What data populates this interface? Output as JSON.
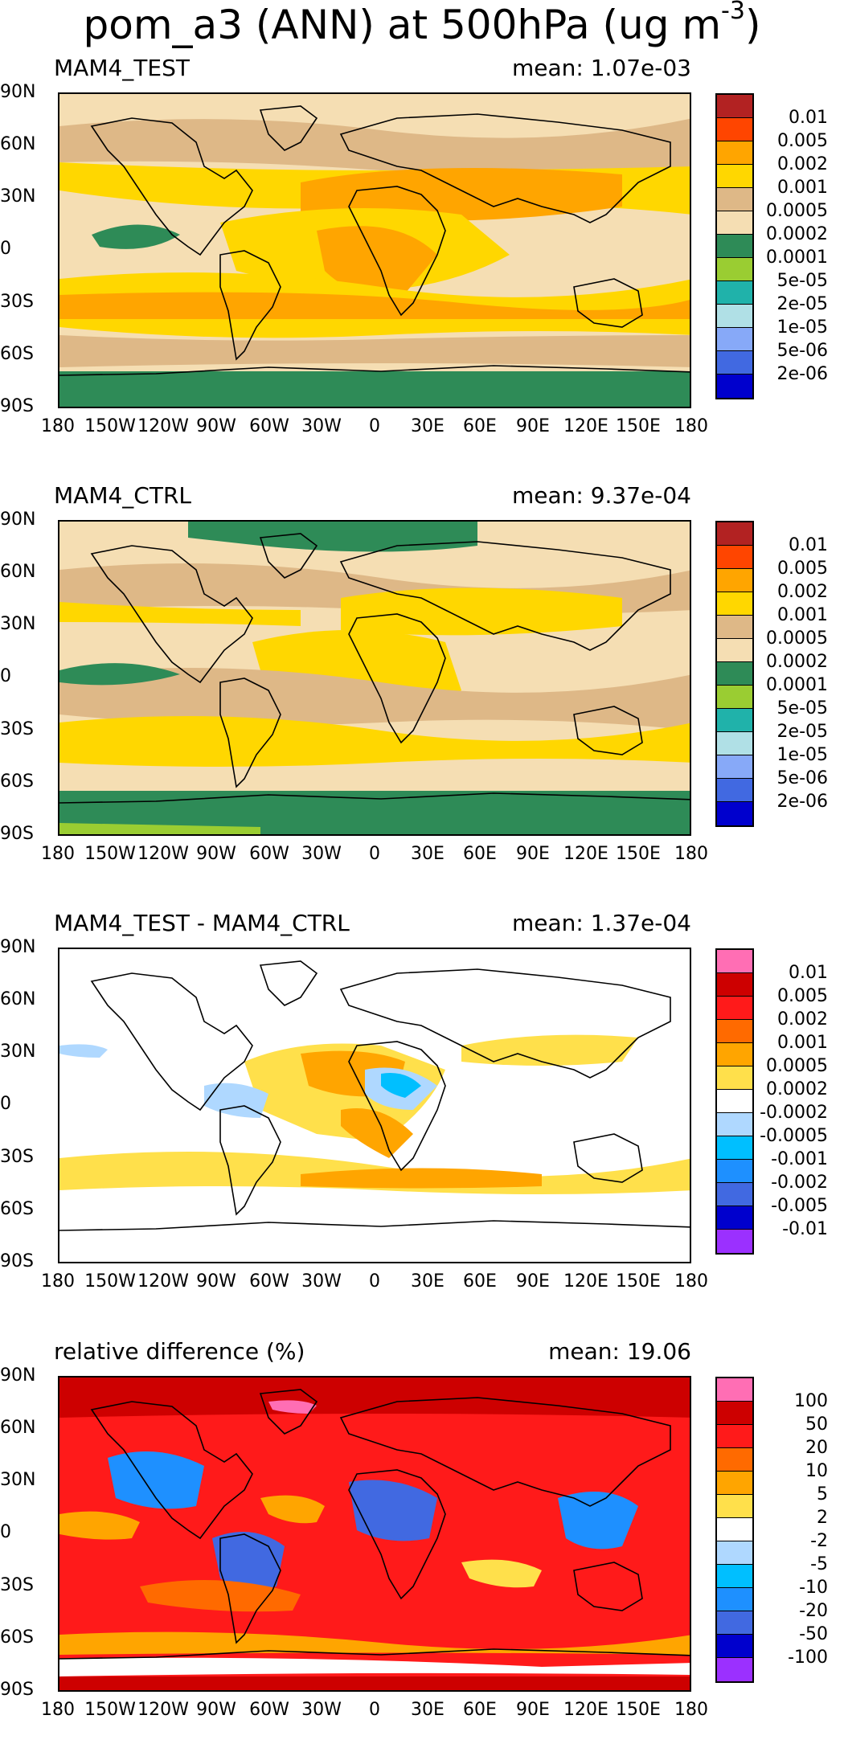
{
  "title": {
    "main": "pom_a3 (ANN) at 500hPa (ug m",
    "sup": "-3",
    "close": ")"
  },
  "lat_labels": [
    "90N",
    "60N",
    "30N",
    "0",
    "30S",
    "60S",
    "90S"
  ],
  "lon_labels": [
    "180",
    "150W",
    "120W",
    "90W",
    "60W",
    "30W",
    "0",
    "30E",
    "60E",
    "90E",
    "120E",
    "150E",
    "180"
  ],
  "panels": [
    {
      "title": "MAM4_TEST",
      "mean": "mean: 1.07e-03",
      "colorbar": {
        "colors": [
          "#b22222",
          "#ff4500",
          "#ffa500",
          "#ffd700",
          "#deb887",
          "#f5deb3",
          "#2e8b57",
          "#9acd32",
          "#20b2aa",
          "#b0e0e6",
          "#87a9f8",
          "#4169e1",
          "#0000cd"
        ],
        "labels": [
          "0.01",
          "0.005",
          "0.002",
          "0.001",
          "0.0005",
          "0.0002",
          "0.0001",
          "5e-05",
          "2e-05",
          "1e-05",
          "5e-06",
          "2e-06"
        ]
      }
    },
    {
      "title": "MAM4_CTRL",
      "mean": "mean: 9.37e-04",
      "colorbar": {
        "colors": [
          "#b22222",
          "#ff4500",
          "#ffa500",
          "#ffd700",
          "#deb887",
          "#f5deb3",
          "#2e8b57",
          "#9acd32",
          "#20b2aa",
          "#b0e0e6",
          "#87a9f8",
          "#4169e1",
          "#0000cd"
        ],
        "labels": [
          "0.01",
          "0.005",
          "0.002",
          "0.001",
          "0.0005",
          "0.0002",
          "0.0001",
          "5e-05",
          "2e-05",
          "1e-05",
          "5e-06",
          "2e-06"
        ]
      }
    },
    {
      "title": "MAM4_TEST - MAM4_CTRL",
      "mean": "mean: 1.37e-04",
      "colorbar": {
        "colors": [
          "#ff6eb4",
          "#cd0000",
          "#ff1a1a",
          "#ff6a00",
          "#ffa500",
          "#ffe04b",
          "#ffffff",
          "#afd8ff",
          "#00bfff",
          "#1e90ff",
          "#4169e1",
          "#0000cd",
          "#9b30ff"
        ],
        "labels": [
          "0.01",
          "0.005",
          "0.002",
          "0.001",
          "0.0005",
          "0.0002",
          "-0.0002",
          "-0.0005",
          "-0.001",
          "-0.002",
          "-0.005",
          "-0.01"
        ]
      }
    },
    {
      "title": "relative difference (%)",
      "mean": "mean: 19.06",
      "colorbar": {
        "colors": [
          "#ff6eb4",
          "#cd0000",
          "#ff1a1a",
          "#ff6a00",
          "#ffa500",
          "#ffe04b",
          "#ffffff",
          "#afd8ff",
          "#00bfff",
          "#1e90ff",
          "#4169e1",
          "#0000cd",
          "#9b30ff"
        ],
        "labels": [
          "100",
          "50",
          "20",
          "10",
          "5",
          "2",
          "-2",
          "-5",
          "-10",
          "-20",
          "-50",
          "-100"
        ]
      }
    }
  ]
}
